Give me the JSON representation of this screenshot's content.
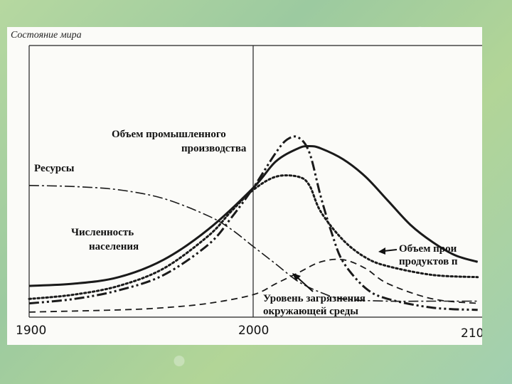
{
  "chart_data": {
    "type": "line",
    "title": "Состояние мира",
    "x_ticks": [
      "1900",
      "2000",
      "210"
    ],
    "xlim": [
      1900,
      2100
    ],
    "ylim": [
      0,
      100
    ],
    "grid": false,
    "series": [
      {
        "name": "Объем промышленного производства",
        "style": "solid",
        "points": [
          [
            1900,
            14
          ],
          [
            1920,
            15
          ],
          [
            1940,
            18
          ],
          [
            1960,
            26
          ],
          [
            1980,
            40
          ],
          [
            2000,
            59
          ],
          [
            2010,
            71
          ],
          [
            2020,
            77
          ],
          [
            2025,
            78
          ],
          [
            2030,
            77
          ],
          [
            2040,
            72
          ],
          [
            2050,
            64
          ],
          [
            2060,
            53
          ],
          [
            2070,
            42
          ],
          [
            2080,
            34
          ],
          [
            2090,
            28
          ],
          [
            2100,
            25
          ]
        ]
      },
      {
        "name": "Ресурсы",
        "style": "dashdot",
        "points": [
          [
            1900,
            60
          ],
          [
            1920,
            59.5
          ],
          [
            1940,
            58
          ],
          [
            1960,
            54
          ],
          [
            1980,
            46
          ],
          [
            1990,
            40
          ],
          [
            2000,
            32
          ],
          [
            2010,
            24
          ],
          [
            2020,
            16
          ],
          [
            2030,
            11
          ],
          [
            2040,
            8
          ],
          [
            2060,
            7
          ],
          [
            2080,
            7
          ],
          [
            2100,
            7
          ]
        ]
      },
      {
        "name": "Численность населения",
        "style": "dashdotdot",
        "points": [
          [
            1900,
            6
          ],
          [
            1920,
            8
          ],
          [
            1940,
            12
          ],
          [
            1960,
            19
          ],
          [
            1980,
            33
          ],
          [
            1990,
            45
          ],
          [
            2000,
            59
          ],
          [
            2010,
            75
          ],
          [
            2015,
            81
          ],
          [
            2020,
            82
          ],
          [
            2025,
            75
          ],
          [
            2030,
            55
          ],
          [
            2035,
            38
          ],
          [
            2040,
            25
          ],
          [
            2050,
            13
          ],
          [
            2060,
            8
          ],
          [
            2080,
            4
          ],
          [
            2100,
            3
          ]
        ]
      },
      {
        "name": "Объем производства продуктов питания",
        "style": "dotted",
        "points": [
          [
            1900,
            8
          ],
          [
            1920,
            10
          ],
          [
            1940,
            14
          ],
          [
            1960,
            22
          ],
          [
            1980,
            37
          ],
          [
            1990,
            48
          ],
          [
            2000,
            58
          ],
          [
            2010,
            64
          ],
          [
            2020,
            64
          ],
          [
            2025,
            60
          ],
          [
            2030,
            48
          ],
          [
            2040,
            35
          ],
          [
            2050,
            27
          ],
          [
            2060,
            23
          ],
          [
            2080,
            19
          ],
          [
            2100,
            18
          ]
        ]
      },
      {
        "name": "Уровень загрязнения окружающей среды",
        "style": "dashed",
        "points": [
          [
            1900,
            2
          ],
          [
            1940,
            3
          ],
          [
            1960,
            4
          ],
          [
            1980,
            6
          ],
          [
            2000,
            10
          ],
          [
            2010,
            15
          ],
          [
            2020,
            20
          ],
          [
            2030,
            25
          ],
          [
            2040,
            26
          ],
          [
            2050,
            22
          ],
          [
            2060,
            15
          ],
          [
            2080,
            8
          ],
          [
            2100,
            6
          ]
        ]
      }
    ],
    "annotations": {
      "industry": [
        "Объем промышленного",
        "производства"
      ],
      "resources": "Ресурсы",
      "population": [
        "Численность",
        "населения"
      ],
      "food": [
        "Объем прои",
        "продуктов п"
      ],
      "pollution": [
        "Уровень загрязнения",
        "окружающей среды"
      ]
    }
  }
}
